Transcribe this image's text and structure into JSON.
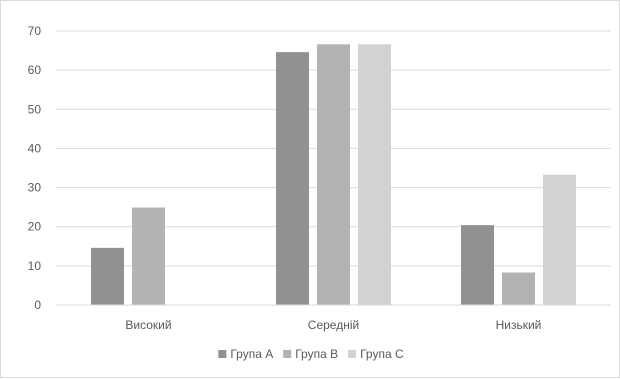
{
  "chart_data": {
    "type": "bar",
    "title": "",
    "xlabel": "",
    "ylabel": "",
    "categories": [
      "Високий",
      "Середній",
      "Низький"
    ],
    "series": [
      {
        "name": "Група А",
        "values": [
          14.6,
          64.6,
          20.4
        ]
      },
      {
        "name": "Група В",
        "values": [
          24.9,
          66.6,
          8.3
        ]
      },
      {
        "name": "Група С",
        "values": [
          0,
          66.6,
          33.3
        ]
      }
    ],
    "ylim": [
      0,
      70
    ],
    "yticks": [
      0,
      10,
      20,
      30,
      40,
      50,
      60,
      70
    ],
    "grid": true,
    "legend_position": "bottom",
    "colors": {
      "series": [
        "#919191",
        "#b3b3b3",
        "#d2d2d2"
      ],
      "grid": "#d9d9d9",
      "axis": "#d9d9d9",
      "text": "#595959"
    }
  }
}
